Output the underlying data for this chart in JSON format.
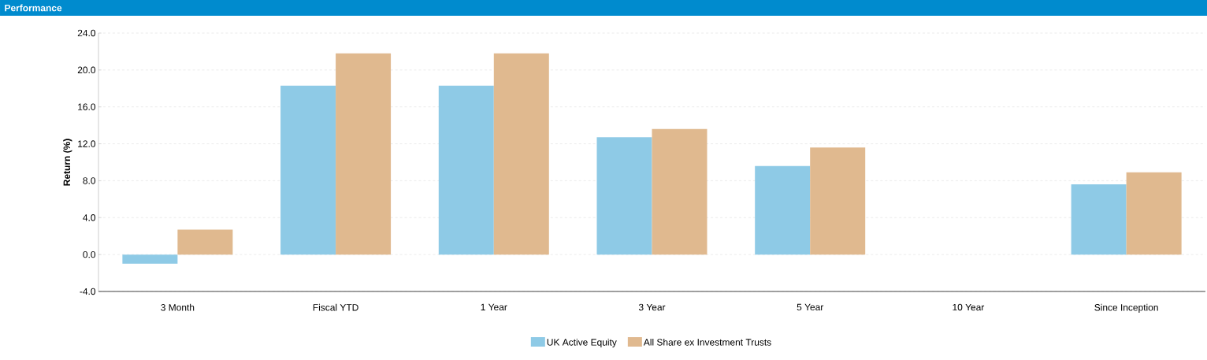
{
  "chart_data": {
    "type": "bar",
    "title": "Performance",
    "ylabel": "Return (%)",
    "categories": [
      "3 Month",
      "Fiscal YTD",
      "1 Year",
      "3 Year",
      "5 Year",
      "10 Year",
      "Since Inception"
    ],
    "series": [
      {
        "name": "UK Active Equity",
        "color": "#8ecae6",
        "values": [
          -1.0,
          18.3,
          18.3,
          12.7,
          9.6,
          null,
          7.6
        ]
      },
      {
        "name": "All Share ex Investment Trusts",
        "color": "#e0b98f",
        "values": [
          2.7,
          21.8,
          21.8,
          13.6,
          11.6,
          null,
          8.9
        ]
      }
    ],
    "ylim": [
      -4,
      24
    ],
    "yticks": [
      {
        "value": -4,
        "label": "-4.0"
      },
      {
        "value": 0,
        "label": "0.0"
      },
      {
        "value": 4,
        "label": "4.0"
      },
      {
        "value": 8,
        "label": "8.0"
      },
      {
        "value": 12,
        "label": "12.0"
      },
      {
        "value": 16,
        "label": "16.0"
      },
      {
        "value": 20,
        "label": "20.0"
      },
      {
        "value": 24,
        "label": "24.0"
      }
    ],
    "grid": "y",
    "legend": "bottom"
  }
}
